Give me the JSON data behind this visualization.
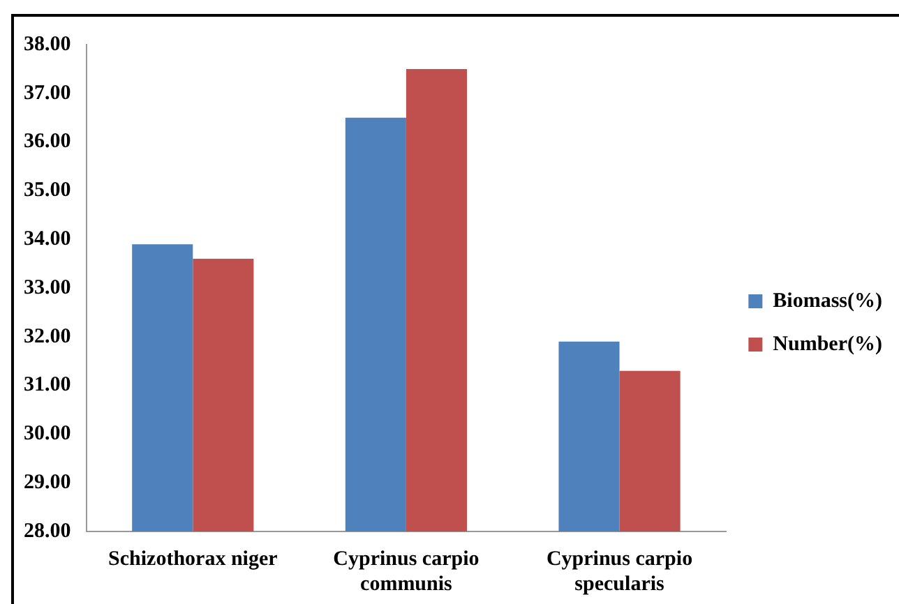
{
  "chart_data": {
    "type": "bar",
    "categories": [
      "Schizothorax niger",
      "Cyprinus carpio communis",
      "Cyprinus carpio specularis"
    ],
    "series": [
      {
        "name": "Biomass(%)",
        "color": "#4f81bd",
        "values": [
          33.9,
          36.5,
          31.9
        ]
      },
      {
        "name": "Number(%)",
        "color": "#c0504d",
        "values": [
          33.6,
          37.5,
          31.3
        ]
      }
    ],
    "ylim": [
      28,
      38
    ],
    "yticks": [
      {
        "value": 28,
        "label": "28.00"
      },
      {
        "value": 29,
        "label": "29.00"
      },
      {
        "value": 30,
        "label": "30.00"
      },
      {
        "value": 31,
        "label": "31.00"
      },
      {
        "value": 32,
        "label": "32.00"
      },
      {
        "value": 33,
        "label": "33.00"
      },
      {
        "value": 34,
        "label": "34.00"
      },
      {
        "value": 35,
        "label": "35.00"
      },
      {
        "value": 36,
        "label": "36.00"
      },
      {
        "value": 37,
        "label": "37.00"
      },
      {
        "value": 38,
        "label": "38.00"
      }
    ],
    "grid": false,
    "legend": "right"
  }
}
